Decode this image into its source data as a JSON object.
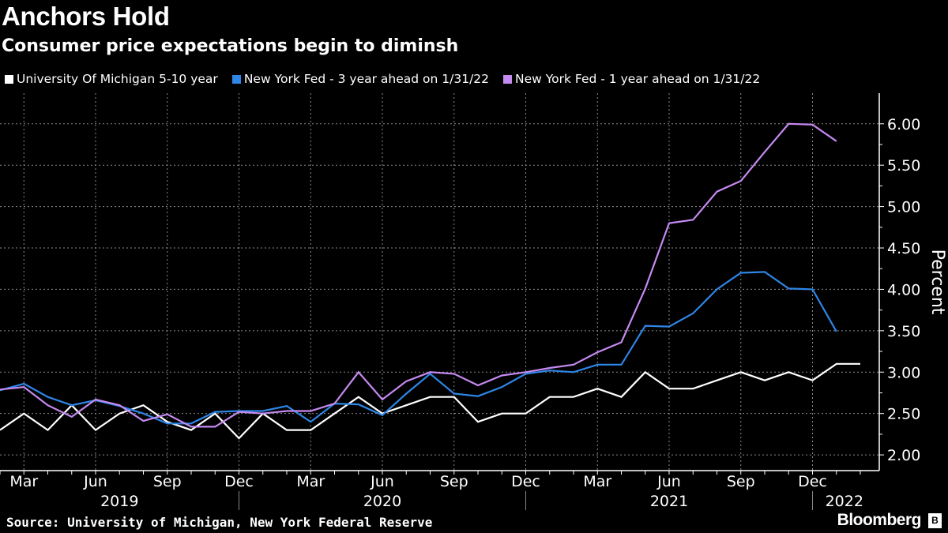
{
  "chart_data": {
    "type": "line",
    "title": "Anchors Hold",
    "subtitle": "Consumer price expectations begin to diminsh",
    "ylabel": "Percent",
    "xlabel": "",
    "ylim": [
      1.81,
      6.37
    ],
    "yticks": [
      "2.00",
      "2.50",
      "3.00",
      "3.50",
      "4.00",
      "4.50",
      "5.00",
      "5.50",
      "6.00"
    ],
    "ytick_values": [
      2.0,
      2.5,
      3.0,
      3.5,
      4.0,
      4.5,
      5.0,
      5.5,
      6.0
    ],
    "grid": true,
    "legend_position": "top",
    "x_start": "2019-02",
    "x_end": "2022-02",
    "xtick_months": [
      "Mar",
      "Jun",
      "Sep",
      "Dec",
      "Mar",
      "Jun",
      "Sep",
      "Dec",
      "Mar",
      "Jun",
      "Sep",
      "Dec"
    ],
    "xtick_dates": [
      "2019-03",
      "2019-06",
      "2019-09",
      "2019-12",
      "2020-03",
      "2020-06",
      "2020-09",
      "2020-12",
      "2021-03",
      "2021-06",
      "2021-09",
      "2021-12"
    ],
    "year_labels": [
      {
        "label": "2019",
        "center": "2019-07"
      },
      {
        "label": "2020",
        "center": "2020-06"
      },
      {
        "label": "2021",
        "center": "2021-06"
      },
      {
        "label": "2022",
        "center": "2022-01"
      }
    ],
    "series": [
      {
        "name": "University Of Michigan 5-10 year",
        "color": "#ffffff",
        "start": "2019-02",
        "values": [
          2.3,
          2.5,
          2.3,
          2.6,
          2.3,
          2.5,
          2.6,
          2.4,
          2.3,
          2.5,
          2.2,
          2.5,
          2.3,
          2.3,
          2.5,
          2.7,
          2.5,
          2.6,
          2.7,
          2.7,
          2.4,
          2.5,
          2.5,
          2.7,
          2.7,
          2.8,
          2.7,
          3.0,
          2.8,
          2.8,
          2.9,
          3.0,
          2.9,
          3.0,
          2.9,
          3.1,
          3.1
        ]
      },
      {
        "name": "New York Fed - 3 year ahead on 1/31/22",
        "color": "#2e86e6",
        "start": "2019-02",
        "values": [
          2.78,
          2.86,
          2.7,
          2.6,
          2.66,
          2.59,
          2.5,
          2.38,
          2.38,
          2.52,
          2.53,
          2.53,
          2.59,
          2.4,
          2.62,
          2.61,
          2.48,
          2.74,
          2.98,
          2.74,
          2.71,
          2.82,
          2.98,
          3.02,
          3.0,
          3.09,
          3.09,
          3.56,
          3.55,
          3.71,
          4.0,
          4.2,
          4.21,
          4.01,
          4.0,
          3.49
        ]
      },
      {
        "name": "New York Fed - 1 year ahead on 1/31/22",
        "color": "#c58af0",
        "start": "2019-02",
        "values": [
          2.79,
          2.82,
          2.6,
          2.46,
          2.67,
          2.6,
          2.41,
          2.49,
          2.34,
          2.34,
          2.52,
          2.5,
          2.53,
          2.53,
          2.62,
          3.0,
          2.67,
          2.89,
          3.0,
          2.98,
          2.84,
          2.96,
          3.0,
          3.05,
          3.09,
          3.24,
          3.36,
          4.01,
          4.8,
          4.84,
          5.18,
          5.31,
          5.66,
          6.0,
          5.99,
          5.79
        ]
      }
    ]
  },
  "footer": {
    "source": "Source: University of Michigan, New York Federal Reserve",
    "logo": "Bloomberg"
  }
}
